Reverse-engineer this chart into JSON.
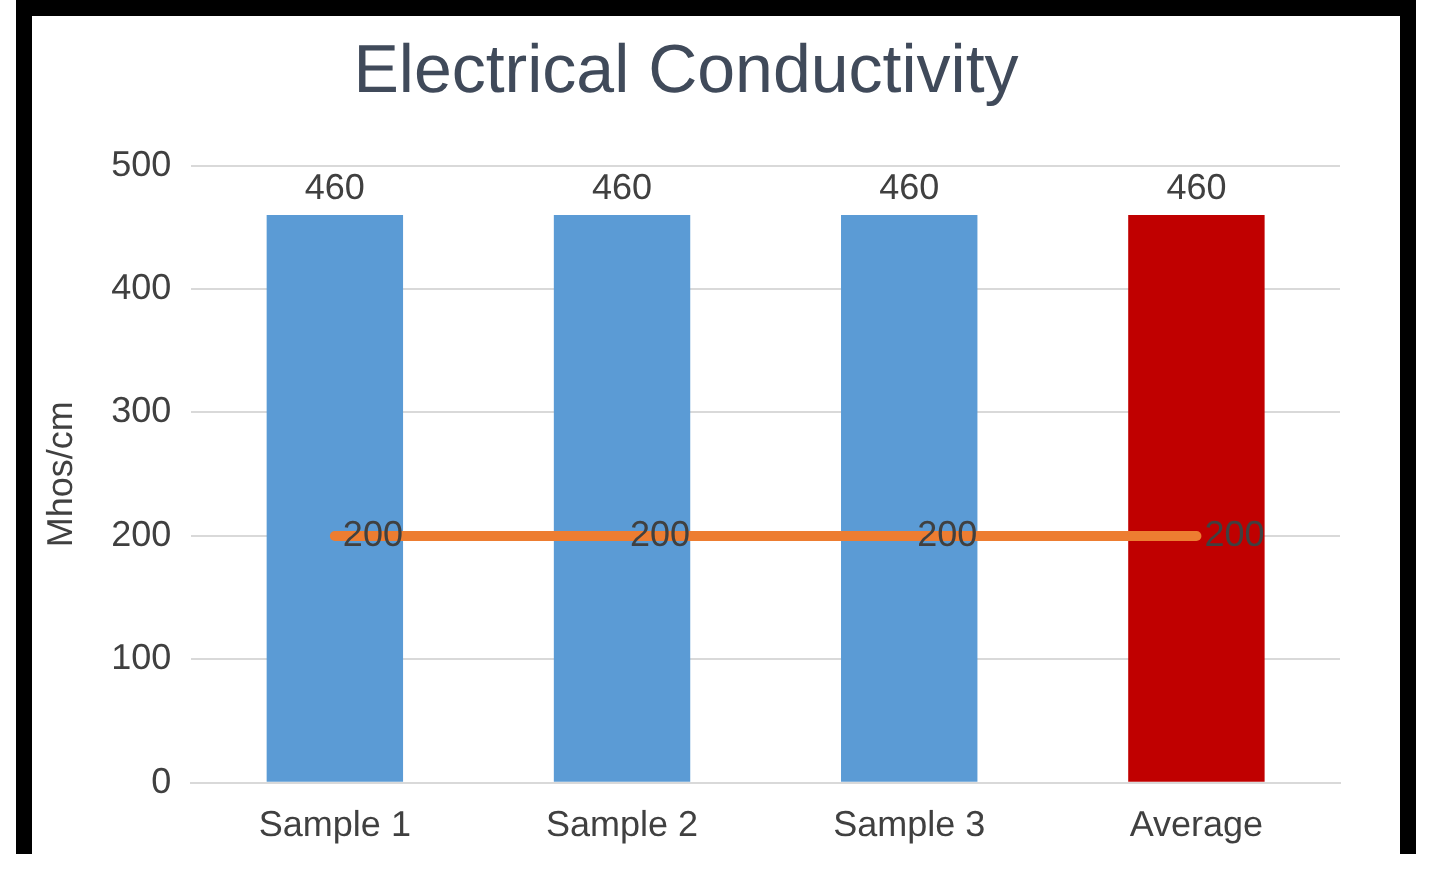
{
  "chart_data": {
    "type": "bar",
    "title": "Electrical Conductivity",
    "ylabel": "Mhos/cm",
    "categories": [
      "Sample 1",
      "Sample 2",
      "Sample 3",
      "Average"
    ],
    "series": [
      {
        "colors": [
          "#5b9bd5",
          "#5b9bd5",
          "#5b9bd5",
          "#c00000"
        ],
        "values": [
          460,
          460,
          460,
          460
        ]
      },
      {
        "type": "line",
        "color": "#ed7d31",
        "values": [
          200,
          200,
          200,
          200
        ]
      }
    ],
    "ylim": [
      0,
      500
    ],
    "yticks": [
      0,
      100,
      200,
      300,
      400,
      500
    ],
    "grid": "y",
    "legend": false,
    "marker": "none",
    "line_style": "solid",
    "data_labels": true
  }
}
